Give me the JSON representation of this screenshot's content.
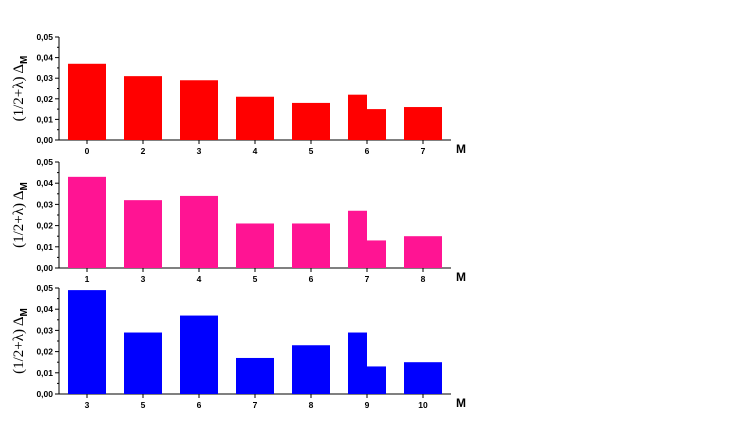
{
  "chart_data": [
    {
      "type": "bar",
      "color": "#ff0000",
      "ylabel_main": "(1/2+λ) Δ",
      "ylabel_sub": "M",
      "xlabel": "M",
      "ylim": [
        0,
        0.05
      ],
      "yticks": [
        "0,00",
        "0,01",
        "0,02",
        "0,03",
        "0,04",
        "0,05"
      ],
      "categories": [
        "0",
        "2",
        "3",
        "4",
        "5",
        "6",
        "7"
      ],
      "bars": [
        {
          "category": "0",
          "values": [
            0.037
          ]
        },
        {
          "category": "2",
          "values": [
            0.031
          ]
        },
        {
          "category": "3",
          "values": [
            0.029
          ]
        },
        {
          "category": "4",
          "values": [
            0.021
          ]
        },
        {
          "category": "5",
          "values": [
            0.018
          ]
        },
        {
          "category": "6",
          "values": [
            0.022,
            0.015
          ]
        },
        {
          "category": "7",
          "values": [
            0.016
          ]
        }
      ]
    },
    {
      "type": "bar",
      "color": "#ff1493",
      "ylabel_main": "(1/2+λ) Δ",
      "ylabel_sub": "M",
      "xlabel": "M",
      "ylim": [
        0,
        0.05
      ],
      "yticks": [
        "0,00",
        "0,01",
        "0,02",
        "0,03",
        "0,04",
        "0,05"
      ],
      "categories": [
        "1",
        "3",
        "4",
        "5",
        "6",
        "7",
        "8"
      ],
      "bars": [
        {
          "category": "1",
          "values": [
            0.043
          ]
        },
        {
          "category": "3",
          "values": [
            0.032
          ]
        },
        {
          "category": "4",
          "values": [
            0.034
          ]
        },
        {
          "category": "5",
          "values": [
            0.021
          ]
        },
        {
          "category": "6",
          "values": [
            0.021
          ]
        },
        {
          "category": "7",
          "values": [
            0.027,
            0.013
          ]
        },
        {
          "category": "8",
          "values": [
            0.015
          ]
        }
      ]
    },
    {
      "type": "bar",
      "color": "#0000ff",
      "ylabel_main": "(1/2+λ) Δ",
      "ylabel_sub": "M",
      "xlabel": "M",
      "ylim": [
        0,
        0.05
      ],
      "yticks": [
        "0,00",
        "0,01",
        "0,02",
        "0,03",
        "0,04",
        "0,05"
      ],
      "categories": [
        "3",
        "5",
        "6",
        "7",
        "8",
        "9",
        "10"
      ],
      "bars": [
        {
          "category": "3",
          "values": [
            0.049
          ]
        },
        {
          "category": "5",
          "values": [
            0.029
          ]
        },
        {
          "category": "6",
          "values": [
            0.037
          ]
        },
        {
          "category": "7",
          "values": [
            0.017
          ]
        },
        {
          "category": "8",
          "values": [
            0.023
          ]
        },
        {
          "category": "9",
          "values": [
            0.029,
            0.013
          ]
        },
        {
          "category": "10",
          "values": [
            0.015
          ]
        }
      ]
    }
  ]
}
